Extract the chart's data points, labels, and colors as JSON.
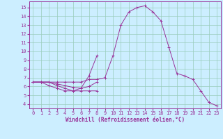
{
  "xlabel": "Windchill (Refroidissement éolien,°C)",
  "background_color": "#cceeff",
  "grid_color": "#99ccbb",
  "line_color": "#993399",
  "xlim": [
    -0.5,
    23.5
  ],
  "ylim": [
    3.5,
    15.7
  ],
  "xticks": [
    0,
    1,
    2,
    3,
    4,
    5,
    6,
    7,
    8,
    9,
    10,
    11,
    12,
    13,
    14,
    15,
    16,
    17,
    18,
    19,
    20,
    21,
    22,
    23
  ],
  "yticks": [
    4,
    5,
    6,
    7,
    8,
    9,
    10,
    11,
    12,
    13,
    14,
    15
  ],
  "curves": [
    [
      6.5,
      6.5,
      6.1,
      5.8,
      5.5,
      5.5,
      5.8,
      7.2,
      9.5,
      null,
      null,
      null,
      null,
      null,
      null,
      null,
      null,
      null,
      null,
      null,
      null,
      null,
      null,
      null
    ],
    [
      6.5,
      6.5,
      6.5,
      6.1,
      5.8,
      5.5,
      5.5,
      5.5,
      5.5,
      null,
      null,
      null,
      null,
      null,
      null,
      null,
      null,
      null,
      null,
      null,
      null,
      null,
      null,
      null
    ],
    [
      6.5,
      6.5,
      6.5,
      6.3,
      6.1,
      5.9,
      5.8,
      6.0,
      6.5,
      null,
      null,
      null,
      null,
      null,
      null,
      null,
      null,
      null,
      null,
      null,
      null,
      null,
      null,
      null
    ],
    [
      6.5,
      6.5,
      6.5,
      6.5,
      6.5,
      6.5,
      6.5,
      6.8,
      6.8,
      7.0,
      9.5,
      13.0,
      14.5,
      15.0,
      15.2,
      14.5,
      13.5,
      10.5,
      7.5,
      7.2,
      6.8,
      5.5,
      4.2,
      3.8
    ]
  ]
}
